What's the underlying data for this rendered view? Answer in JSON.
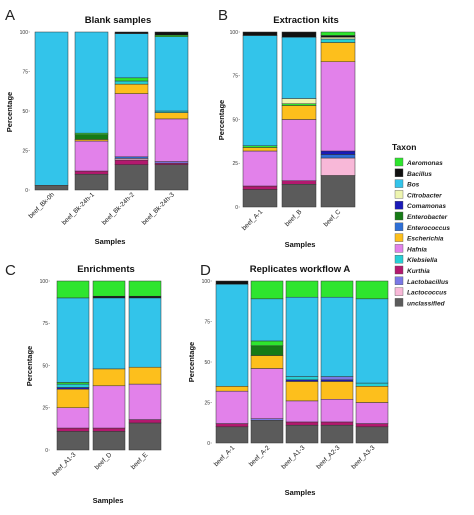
{
  "taxa": [
    {
      "name": "Aeromonas",
      "color": "#2ee52e"
    },
    {
      "name": "Bacillus",
      "color": "#111111"
    },
    {
      "name": "Bos",
      "color": "#33c4ea"
    },
    {
      "name": "Citrobacter",
      "color": "#eef5b0"
    },
    {
      "name": "Comamonas",
      "color": "#1a1ab8"
    },
    {
      "name": "Enterobacter",
      "color": "#167a16"
    },
    {
      "name": "Enterococcus",
      "color": "#2e6fd6"
    },
    {
      "name": "Escherichia",
      "color": "#fdbf1c"
    },
    {
      "name": "Hafnia",
      "color": "#e281ea"
    },
    {
      "name": "Klebsiella",
      "color": "#26cfd6"
    },
    {
      "name": "Kurthia",
      "color": "#b3186e"
    },
    {
      "name": "Lactobacillus",
      "color": "#7a78e6"
    },
    {
      "name": "Lactococcus",
      "color": "#f8b8d8"
    },
    {
      "name": "unclassified",
      "color": "#5b5b5b"
    }
  ],
  "legend": {
    "title": "Taxon"
  },
  "chart_data": [
    {
      "type": "bar",
      "stacked": true,
      "letter": "A",
      "title": "Blank samples",
      "xlabel": "Samples",
      "ylabel": "Percentage",
      "ylim": [
        0,
        100
      ],
      "yticks": [
        "100",
        "75",
        "50",
        "25",
        "0"
      ],
      "categories": [
        "beef_Bk-0h",
        "beef_Bk-24h-1",
        "beef_Bk-24h-2",
        "beef_Bk-24h-3"
      ],
      "stacks": [
        [
          {
            "taxon": "unclassified",
            "value": 3
          },
          {
            "taxon": "Bos",
            "value": 97
          }
        ],
        [
          {
            "taxon": "unclassified",
            "value": 10
          },
          {
            "taxon": "Kurthia",
            "value": 2
          },
          {
            "taxon": "Hafnia",
            "value": 19
          },
          {
            "taxon": "Escherichia",
            "value": 1
          },
          {
            "taxon": "Enterobacter",
            "value": 3
          },
          {
            "taxon": "Aeromonas",
            "value": 1
          },
          {
            "taxon": "Bos",
            "value": 64
          }
        ],
        [
          {
            "taxon": "unclassified",
            "value": 16
          },
          {
            "taxon": "Kurthia",
            "value": 3
          },
          {
            "taxon": "Lactococcus",
            "value": 1
          },
          {
            "taxon": "Enterococcus",
            "value": 1
          },
          {
            "taxon": "Hafnia",
            "value": 40
          },
          {
            "taxon": "Escherichia",
            "value": 6
          },
          {
            "taxon": "Klebsiella",
            "value": 2
          },
          {
            "taxon": "Aeromonas",
            "value": 2
          },
          {
            "taxon": "Bos",
            "value": 28
          },
          {
            "taxon": "Bacillus",
            "value": 1
          }
        ],
        [
          {
            "taxon": "unclassified",
            "value": 16
          },
          {
            "taxon": "Kurthia",
            "value": 1
          },
          {
            "taxon": "Lactobacillus",
            "value": 1
          },
          {
            "taxon": "Hafnia",
            "value": 27
          },
          {
            "taxon": "Escherichia",
            "value": 4
          },
          {
            "taxon": "Klebsiella",
            "value": 1
          },
          {
            "taxon": "Bos",
            "value": 47
          },
          {
            "taxon": "Aeromonas",
            "value": 1
          },
          {
            "taxon": "Bacillus",
            "value": 2
          }
        ]
      ]
    },
    {
      "type": "bar",
      "stacked": true,
      "letter": "B",
      "title": "Extraction kits",
      "xlabel": "Samples",
      "ylabel": "Percentage",
      "ylim": [
        0,
        100
      ],
      "yticks": [
        "100",
        "75",
        "50",
        "25",
        "0"
      ],
      "categories": [
        "beef_A-1",
        "beef_B",
        "beef_C"
      ],
      "stacks": [
        [
          {
            "taxon": "unclassified",
            "value": 10
          },
          {
            "taxon": "Kurthia",
            "value": 2
          },
          {
            "taxon": "Hafnia",
            "value": 20
          },
          {
            "taxon": "Escherichia",
            "value": 2
          },
          {
            "taxon": "Aeromonas",
            "value": 1
          },
          {
            "taxon": "Bos",
            "value": 63
          },
          {
            "taxon": "Bacillus",
            "value": 2
          }
        ],
        [
          {
            "taxon": "unclassified",
            "value": 13
          },
          {
            "taxon": "Kurthia",
            "value": 2
          },
          {
            "taxon": "Hafnia",
            "value": 35
          },
          {
            "taxon": "Escherichia",
            "value": 8
          },
          {
            "taxon": "Aeromonas",
            "value": 1
          },
          {
            "taxon": "Citrobacter",
            "value": 3
          },
          {
            "taxon": "Bos",
            "value": 35
          },
          {
            "taxon": "Bacillus",
            "value": 3
          }
        ],
        [
          {
            "taxon": "unclassified",
            "value": 18
          },
          {
            "taxon": "Lactococcus",
            "value": 10
          },
          {
            "taxon": "Enterococcus",
            "value": 2
          },
          {
            "taxon": "Comamonas",
            "value": 2
          },
          {
            "taxon": "Hafnia",
            "value": 51
          },
          {
            "taxon": "Escherichia",
            "value": 11
          },
          {
            "taxon": "Klebsiella",
            "value": 2
          },
          {
            "taxon": "Citrobacter",
            "value": 1
          },
          {
            "taxon": "Bacillus",
            "value": 1
          },
          {
            "taxon": "Aeromonas",
            "value": 2
          }
        ]
      ]
    },
    {
      "type": "bar",
      "stacked": true,
      "letter": "C",
      "title": "Enrichments",
      "xlabel": "Samples",
      "ylabel": "Percentage",
      "ylim": [
        0,
        100
      ],
      "yticks": [
        "100",
        "75",
        "50",
        "25",
        "0"
      ],
      "categories": [
        "beef_A1-3",
        "beef_D",
        "beef_E"
      ],
      "stacks": [
        [
          {
            "taxon": "unclassified",
            "value": 11
          },
          {
            "taxon": "Kurthia",
            "value": 2
          },
          {
            "taxon": "Hafnia",
            "value": 12
          },
          {
            "taxon": "Escherichia",
            "value": 11
          },
          {
            "taxon": "Comamonas",
            "value": 1
          },
          {
            "taxon": "Klebsiella",
            "value": 2
          },
          {
            "taxon": "Aeromonas",
            "value": 1
          },
          {
            "taxon": "Bos",
            "value": 50
          },
          {
            "taxon": "Aeromonas",
            "value": 10
          }
        ],
        [
          {
            "taxon": "unclassified",
            "value": 11
          },
          {
            "taxon": "Kurthia",
            "value": 2
          },
          {
            "taxon": "Hafnia",
            "value": 25
          },
          {
            "taxon": "Escherichia",
            "value": 10
          },
          {
            "taxon": "Bos",
            "value": 42
          },
          {
            "taxon": "Bacillus",
            "value": 1
          },
          {
            "taxon": "Aeromonas",
            "value": 9
          }
        ],
        [
          {
            "taxon": "unclassified",
            "value": 16
          },
          {
            "taxon": "Kurthia",
            "value": 2
          },
          {
            "taxon": "Hafnia",
            "value": 21
          },
          {
            "taxon": "Escherichia",
            "value": 10
          },
          {
            "taxon": "Bos",
            "value": 41
          },
          {
            "taxon": "Bacillus",
            "value": 1
          },
          {
            "taxon": "Aeromonas",
            "value": 9
          }
        ]
      ]
    },
    {
      "type": "bar",
      "stacked": true,
      "letter": "D",
      "title": "Replicates workflow A",
      "xlabel": "Samples",
      "ylabel": "Percentage",
      "ylim": [
        0,
        100
      ],
      "yticks": [
        "100",
        "75",
        "50",
        "25",
        "0"
      ],
      "categories": [
        "beef_A-1",
        "beef_A-2",
        "beef_A1-3",
        "beef_A2-3",
        "beef_A3-3"
      ],
      "stacks": [
        [
          {
            "taxon": "unclassified",
            "value": 10
          },
          {
            "taxon": "Kurthia",
            "value": 2
          },
          {
            "taxon": "Hafnia",
            "value": 20
          },
          {
            "taxon": "Escherichia",
            "value": 3
          },
          {
            "taxon": "Bos",
            "value": 63
          },
          {
            "taxon": "Bacillus",
            "value": 2
          }
        ],
        [
          {
            "taxon": "unclassified",
            "value": 14
          },
          {
            "taxon": "Lactobacillus",
            "value": 1
          },
          {
            "taxon": "Hafnia",
            "value": 31
          },
          {
            "taxon": "Escherichia",
            "value": 8
          },
          {
            "taxon": "Enterobacter",
            "value": 6
          },
          {
            "taxon": "Aeromonas",
            "value": 3
          },
          {
            "taxon": "Bos",
            "value": 26
          },
          {
            "taxon": "Aeromonas",
            "value": 11
          }
        ],
        [
          {
            "taxon": "unclassified",
            "value": 11
          },
          {
            "taxon": "Kurthia",
            "value": 2
          },
          {
            "taxon": "Hafnia",
            "value": 13
          },
          {
            "taxon": "Escherichia",
            "value": 12
          },
          {
            "taxon": "Comamonas",
            "value": 1
          },
          {
            "taxon": "Klebsiella",
            "value": 2
          },
          {
            "taxon": "Bos",
            "value": 49
          },
          {
            "taxon": "Aeromonas",
            "value": 10
          }
        ],
        [
          {
            "taxon": "unclassified",
            "value": 11
          },
          {
            "taxon": "Kurthia",
            "value": 2
          },
          {
            "taxon": "Hafnia",
            "value": 14
          },
          {
            "taxon": "Escherichia",
            "value": 11
          },
          {
            "taxon": "Comamonas",
            "value": 1
          },
          {
            "taxon": "Lactobacillus",
            "value": 2
          },
          {
            "taxon": "Bos",
            "value": 49
          },
          {
            "taxon": "Aeromonas",
            "value": 10
          }
        ],
        [
          {
            "taxon": "unclassified",
            "value": 10
          },
          {
            "taxon": "Kurthia",
            "value": 2
          },
          {
            "taxon": "Hafnia",
            "value": 13
          },
          {
            "taxon": "Escherichia",
            "value": 10
          },
          {
            "taxon": "Klebsiella",
            "value": 2
          },
          {
            "taxon": "Bos",
            "value": 52
          },
          {
            "taxon": "Aeromonas",
            "value": 11
          }
        ]
      ]
    }
  ]
}
